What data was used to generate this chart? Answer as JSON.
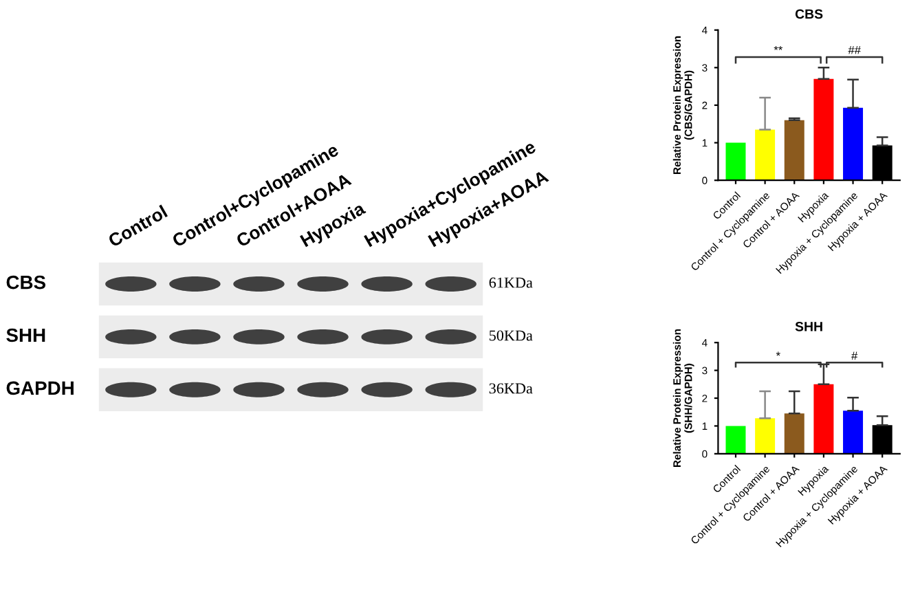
{
  "chart_data": [
    {
      "type": "other",
      "categories": [
        "Control",
        "Control+Cyclopamine",
        "Control+AOAA",
        "Hypoxia",
        "Hypoxia+Cyclopamine",
        "Hypoxia+AOAA"
      ],
      "y_categories": [
        "CBS",
        "SHH",
        "GAPDH"
      ],
      "y2_categories": [
        "61KDa",
        "50KDa",
        "36KDa"
      ]
    },
    {
      "type": "bar",
      "title": "CBS",
      "ylabel": "Relative Protein Expression\n(CBS/GAPDH)",
      "categories": [
        "Control",
        "Control + Cyclopamine",
        "Control + AOAA",
        "Hypoxia",
        "Hypoxia + Cyclopamine",
        "Hypoxia + AOAA"
      ],
      "values": [
        1.0,
        1.35,
        1.6,
        2.7,
        1.93,
        0.93
      ],
      "errors": [
        null,
        [
          1.35,
          2.2
        ],
        [
          1.6,
          1.65
        ],
        [
          2.7,
          3.0
        ],
        [
          1.93,
          2.68
        ],
        [
          0.93,
          1.15
        ]
      ],
      "colors": [
        "#00ff00",
        "#ffff00",
        "#8b5a1e",
        "#ff0000",
        "#0000ff",
        "#000000"
      ],
      "ylim": [
        0,
        4
      ],
      "yticks": [
        0,
        1,
        2,
        3,
        4
      ],
      "grid": false,
      "legend": false,
      "annotations": [
        "**",
        "##"
      ]
    },
    {
      "type": "bar",
      "title": "SHH",
      "ylabel": "Relative Protein Expression\n(SHH/GAPDH)",
      "categories": [
        "Control",
        "Control + Cyclopamine",
        "Control + AOAA",
        "Hypoxia",
        "Hypoxia + Cyclopamine",
        "Hypoxia + AOAA"
      ],
      "values": [
        1.0,
        1.28,
        1.45,
        2.5,
        1.55,
        1.03
      ],
      "errors": [
        null,
        [
          1.28,
          2.25
        ],
        [
          1.45,
          2.25
        ],
        [
          2.5,
          3.22
        ],
        [
          1.55,
          2.02
        ],
        [
          1.03,
          1.35
        ]
      ],
      "colors": [
        "#00ff00",
        "#ffff00",
        "#8b5a1e",
        "#ff0000",
        "#0000ff",
        "#000000"
      ],
      "ylim": [
        0,
        4
      ],
      "yticks": [
        0,
        1,
        2,
        3,
        4
      ],
      "grid": false,
      "legend": false,
      "annotations": [
        "*",
        "#"
      ]
    }
  ]
}
